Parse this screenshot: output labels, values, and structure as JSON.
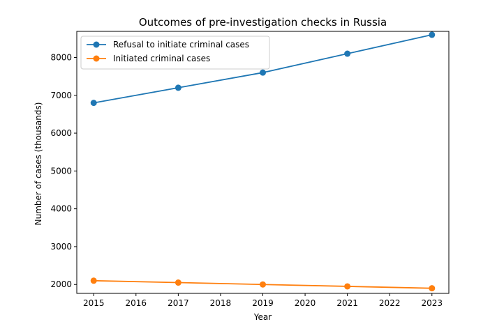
{
  "chart_data": {
    "type": "line",
    "title": "Outcomes of pre-investigation checks in Russia",
    "xlabel": "Year",
    "ylabel": "Number of cases (thousands)",
    "x": [
      2015,
      2017,
      2019,
      2021,
      2023
    ],
    "xticks": [
      2015,
      2016,
      2017,
      2018,
      2019,
      2020,
      2021,
      2022,
      2023
    ],
    "yticks": [
      2000,
      3000,
      4000,
      5000,
      6000,
      7000,
      8000
    ],
    "xlim": [
      2014.6,
      2023.4
    ],
    "ylim": [
      1765,
      8690
    ],
    "grid": false,
    "legend_position": "upper left",
    "series": [
      {
        "name": "Refusal to initiate criminal cases",
        "color": "#1f77b4",
        "values": [
          6800,
          7200,
          7600,
          8100,
          8600
        ]
      },
      {
        "name": "Initiated criminal cases",
        "color": "#ff7f0e",
        "values": [
          2100,
          2050,
          2000,
          1950,
          1900
        ]
      }
    ]
  }
}
